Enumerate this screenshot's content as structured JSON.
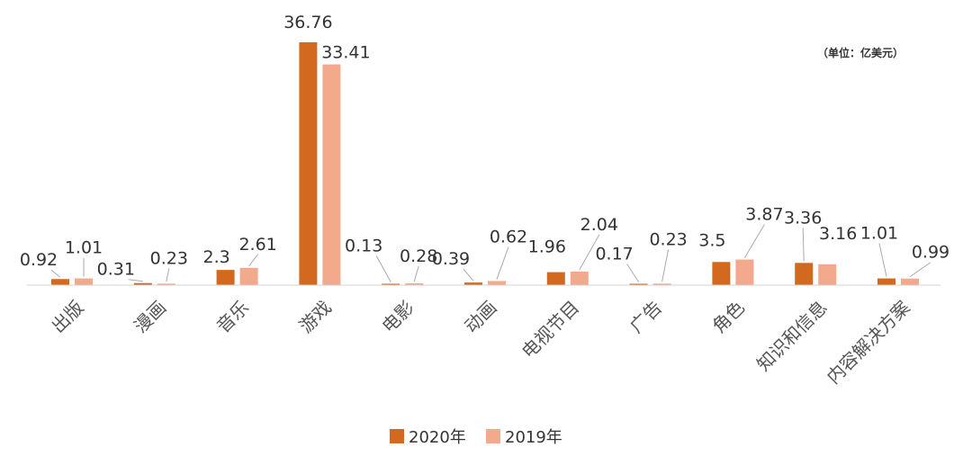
{
  "chart_data": {
    "type": "bar",
    "unit_label": "（单位：亿美元）",
    "categories": [
      "出版",
      "漫画",
      "音乐",
      "游戏",
      "电影",
      "动画",
      "电视节目",
      "广告",
      "角色",
      "知识和信息",
      "内容解决方案"
    ],
    "series": [
      {
        "name": "2020年",
        "color": "#d2691e",
        "values": [
          0.92,
          0.31,
          2.3,
          36.76,
          0.13,
          0.39,
          1.96,
          0.17,
          3.5,
          3.36,
          1.01
        ],
        "labels": [
          "0.92",
          "0.31",
          "2.3",
          "36.76",
          "0.13",
          "0.39",
          "1.96",
          "0.17",
          "3.5",
          "3.36",
          "1.01"
        ]
      },
      {
        "name": "2019年",
        "color": "#f2a98c",
        "values": [
          1.01,
          0.23,
          2.61,
          33.41,
          0.28,
          0.62,
          2.04,
          0.23,
          3.87,
          3.16,
          0.99
        ],
        "labels": [
          "1.01",
          "0.23",
          "2.61",
          "33.41",
          "0.28",
          "0.62",
          "2.04",
          "0.23",
          "3.87",
          "3.16",
          "0.99"
        ]
      }
    ],
    "ylim": [
      0,
      36.76
    ],
    "grid": false,
    "legend_position": "bottom-center"
  }
}
